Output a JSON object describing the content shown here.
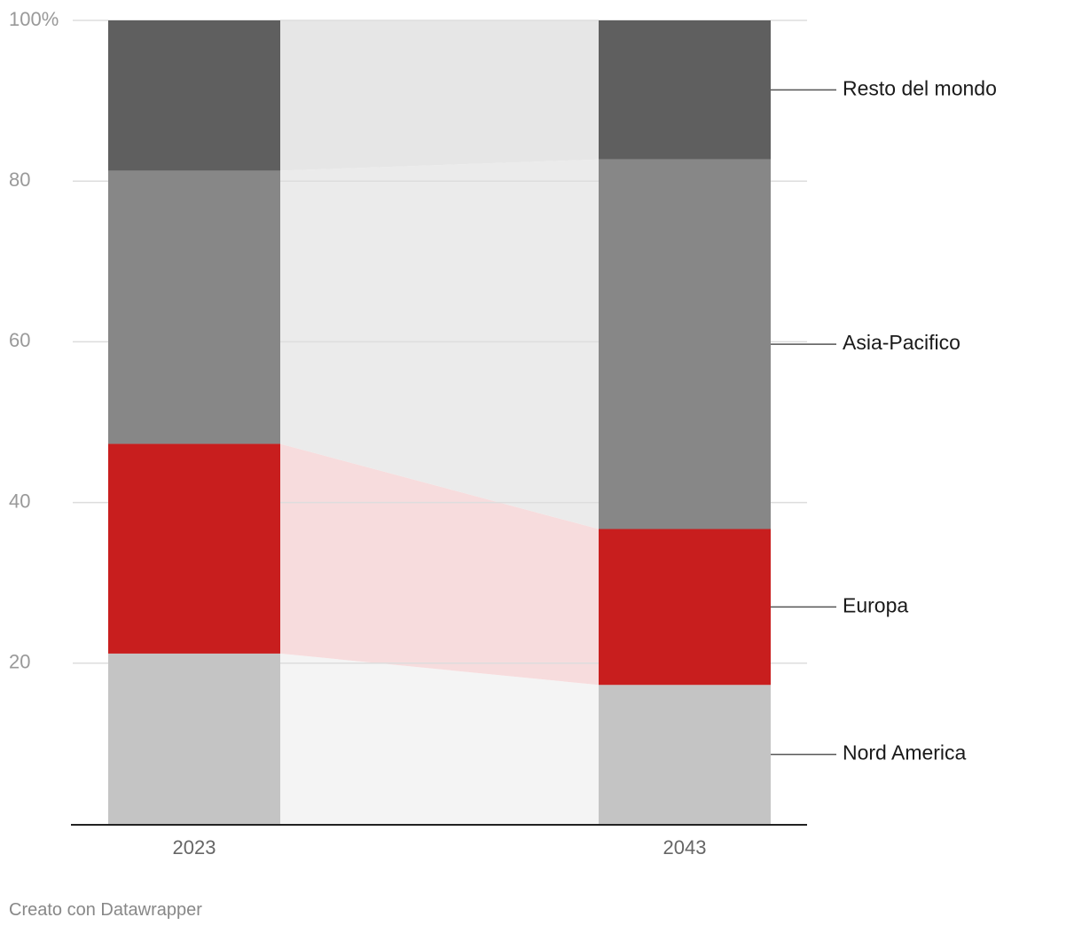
{
  "chart_data": {
    "type": "bar",
    "stacked": true,
    "normalized": true,
    "categories": [
      "2023",
      "2043"
    ],
    "series": [
      {
        "name": "Nord America",
        "values": [
          21.2,
          17.3
        ],
        "color": "#c4c4c4",
        "band_color": "#f4f4f4"
      },
      {
        "name": "Europa",
        "values": [
          26.1,
          19.4
        ],
        "color": "#c81e1e",
        "band_color": "#f7dcdd"
      },
      {
        "name": "Asia-Pacifico",
        "values": [
          34.0,
          46.0
        ],
        "color": "#878787",
        "band_color": "#ebebeb"
      },
      {
        "name": "Resto del mondo",
        "values": [
          18.7,
          17.3
        ],
        "color": "#5f5f5f",
        "band_color": "#e6e6e6"
      }
    ],
    "ylim": [
      0,
      100
    ],
    "yticks": [
      20,
      40,
      60,
      80,
      100
    ],
    "ytick_labels": [
      "20",
      "40",
      "60",
      "80",
      "100%"
    ],
    "grid": true,
    "legend": "right, direct labels",
    "title": "",
    "xlabel": "",
    "ylabel": ""
  },
  "footer": {
    "credit": "Creato con Datawrapper"
  }
}
